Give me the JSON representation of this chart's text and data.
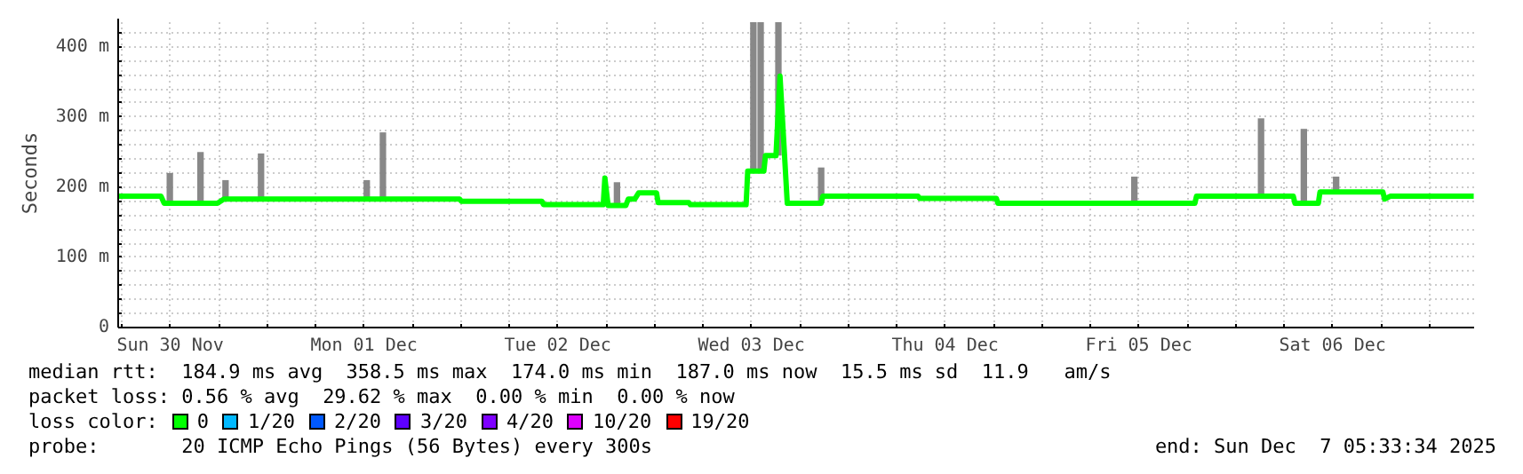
{
  "chart_data": {
    "type": "line",
    "ylabel": "Seconds",
    "xlim": [
      "2025-11-30T05:33",
      "2025-12-07T05:33"
    ],
    "xticks": [
      {
        "value": "2025-11-30T06:00",
        "label": null
      },
      {
        "value": "2025-11-30T12:00",
        "label": "Sun 30 Nov"
      },
      {
        "value": "2025-11-30T18:00",
        "label": null
      },
      {
        "value": "2025-12-01T00:00",
        "label": null
      },
      {
        "value": "2025-12-01T06:00",
        "label": null
      },
      {
        "value": "2025-12-01T12:00",
        "label": "Mon 01 Dec"
      },
      {
        "value": "2025-12-01T18:00",
        "label": null
      },
      {
        "value": "2025-12-02T00:00",
        "label": null
      },
      {
        "value": "2025-12-02T06:00",
        "label": null
      },
      {
        "value": "2025-12-02T12:00",
        "label": "Tue 02 Dec"
      },
      {
        "value": "2025-12-02T18:00",
        "label": null
      },
      {
        "value": "2025-12-03T00:00",
        "label": null
      },
      {
        "value": "2025-12-03T06:00",
        "label": null
      },
      {
        "value": "2025-12-03T12:00",
        "label": "Wed 03 Dec"
      },
      {
        "value": "2025-12-03T18:00",
        "label": null
      },
      {
        "value": "2025-12-04T00:00",
        "label": null
      },
      {
        "value": "2025-12-04T06:00",
        "label": null
      },
      {
        "value": "2025-12-04T12:00",
        "label": "Thu 04 Dec"
      },
      {
        "value": "2025-12-04T18:00",
        "label": null
      },
      {
        "value": "2025-12-05T00:00",
        "label": null
      },
      {
        "value": "2025-12-05T06:00",
        "label": null
      },
      {
        "value": "2025-12-05T12:00",
        "label": "Fri 05 Dec"
      },
      {
        "value": "2025-12-05T18:00",
        "label": null
      },
      {
        "value": "2025-12-06T00:00",
        "label": null
      },
      {
        "value": "2025-12-06T06:00",
        "label": null
      },
      {
        "value": "2025-12-06T12:00",
        "label": "Sat 06 Dec"
      },
      {
        "value": "2025-12-06T18:00",
        "label": null
      },
      {
        "value": "2025-12-07T00:00",
        "label": null
      }
    ],
    "ylim": [
      0,
      440
    ],
    "yticks": [
      {
        "value": 0,
        "label": "0"
      },
      {
        "value": 20,
        "label": null
      },
      {
        "value": 40,
        "label": null
      },
      {
        "value": 60,
        "label": null
      },
      {
        "value": 80,
        "label": null
      },
      {
        "value": 100,
        "label": "100 m"
      },
      {
        "value": 120,
        "label": null
      },
      {
        "value": 140,
        "label": null
      },
      {
        "value": 160,
        "label": null
      },
      {
        "value": 180,
        "label": null
      },
      {
        "value": 200,
        "label": "200 m"
      },
      {
        "value": 220,
        "label": null
      },
      {
        "value": 240,
        "label": null
      },
      {
        "value": 260,
        "label": null
      },
      {
        "value": 280,
        "label": null
      },
      {
        "value": 300,
        "label": "300 m"
      },
      {
        "value": 320,
        "label": null
      },
      {
        "value": 340,
        "label": null
      },
      {
        "value": 360,
        "label": null
      },
      {
        "value": 380,
        "label": null
      },
      {
        "value": 400,
        "label": "400 m"
      },
      {
        "value": 420,
        "label": null
      }
    ],
    "grid": true,
    "legend": "bottom",
    "legend_title": "loss color:",
    "series": [
      {
        "type": "bar",
        "color": "#888888",
        "x": [
          "2025-11-30T11:57",
          "2025-11-30T15:45",
          "2025-11-30T18:51",
          "2025-11-30T23:15",
          "2025-12-01T12:21",
          "2025-12-01T14:21",
          "2025-12-02T19:21",
          "2025-12-03T12:15",
          "2025-12-03T13:09",
          "2025-12-03T15:21",
          "2025-12-03T20:39",
          "2025-12-05T11:27",
          "2025-12-06T03:09",
          "2025-12-06T08:27",
          "2025-12-06T12:27"
        ],
        "base": [
          177,
          177,
          183,
          183,
          183,
          183,
          174,
          223,
          223,
          245,
          177,
          177,
          187,
          177,
          193
        ],
        "values": [
          43,
          73,
          27,
          65,
          27,
          95,
          33,
          212,
          212,
          190,
          51,
          38,
          111,
          106,
          22
        ]
      },
      {
        "name": "0",
        "color": "#00ff00",
        "x": [
          "2025-11-30T05:33",
          "2025-11-30T10:51",
          "2025-11-30T11:15",
          "2025-11-30T17:51",
          "2025-11-30T18:39",
          "2025-12-01T23:51",
          "2025-12-02T00:05",
          "2025-12-02T10:03",
          "2025-12-02T10:15",
          "2025-12-02T17:39",
          "2025-12-02T17:51",
          "2025-12-02T18:15",
          "2025-12-02T20:27",
          "2025-12-02T20:45",
          "2025-12-02T21:33",
          "2025-12-02T22:03",
          "2025-12-03T00:15",
          "2025-12-03T00:27",
          "2025-12-03T04:15",
          "2025-12-03T04:27",
          "2025-12-03T11:21",
          "2025-12-03T11:33",
          "2025-12-03T13:33",
          "2025-12-03T13:45",
          "2025-12-03T15:03",
          "2025-12-03T15:33",
          "2025-12-03T16:27",
          "2025-12-03T20:39",
          "2025-12-03T20:51",
          "2025-12-04T08:39",
          "2025-12-04T08:51",
          "2025-12-04T18:21",
          "2025-12-04T18:33",
          "2025-12-05T18:57",
          "2025-12-05T19:09",
          "2025-12-06T07:09",
          "2025-12-06T07:21",
          "2025-12-06T10:15",
          "2025-12-06T10:27",
          "2025-12-06T18:15",
          "2025-12-06T18:27",
          "2025-12-06T19:09",
          "2025-12-07T05:30"
        ],
        "values": [
          187,
          187,
          177,
          177,
          183,
          183,
          180,
          180,
          175,
          175,
          213,
          174,
          174,
          183,
          183,
          192,
          192,
          178,
          178,
          175,
          175,
          223,
          223,
          245,
          245,
          358,
          177,
          177,
          187,
          187,
          184,
          184,
          177,
          177,
          187,
          187,
          177,
          177,
          193,
          193,
          183,
          187,
          187
        ]
      },
      {
        "name": "1/20",
        "color": "#00b8ff"
      },
      {
        "name": "2/20",
        "color": "#0059ff"
      },
      {
        "name": "3/20",
        "color": "#5e00ff"
      },
      {
        "name": "4/20",
        "color": "#7e00ff"
      },
      {
        "name": "10/20",
        "color": "#dd00ff"
      },
      {
        "name": "19/20",
        "color": "#ff0000"
      }
    ],
    "annotations": [
      "median rtt:  184.9 ms avg  358.5 ms max  174.0 ms min  187.0 ms now  15.5 ms sd  11.9   am/s",
      "packet loss: 0.56 % avg  29.62 % max  0.00 % min  0.00 % now",
      "probe:       20 ICMP Echo Pings (56 Bytes) every 300s",
      "end: Sun Dec  7 05:33:34 2025"
    ]
  }
}
